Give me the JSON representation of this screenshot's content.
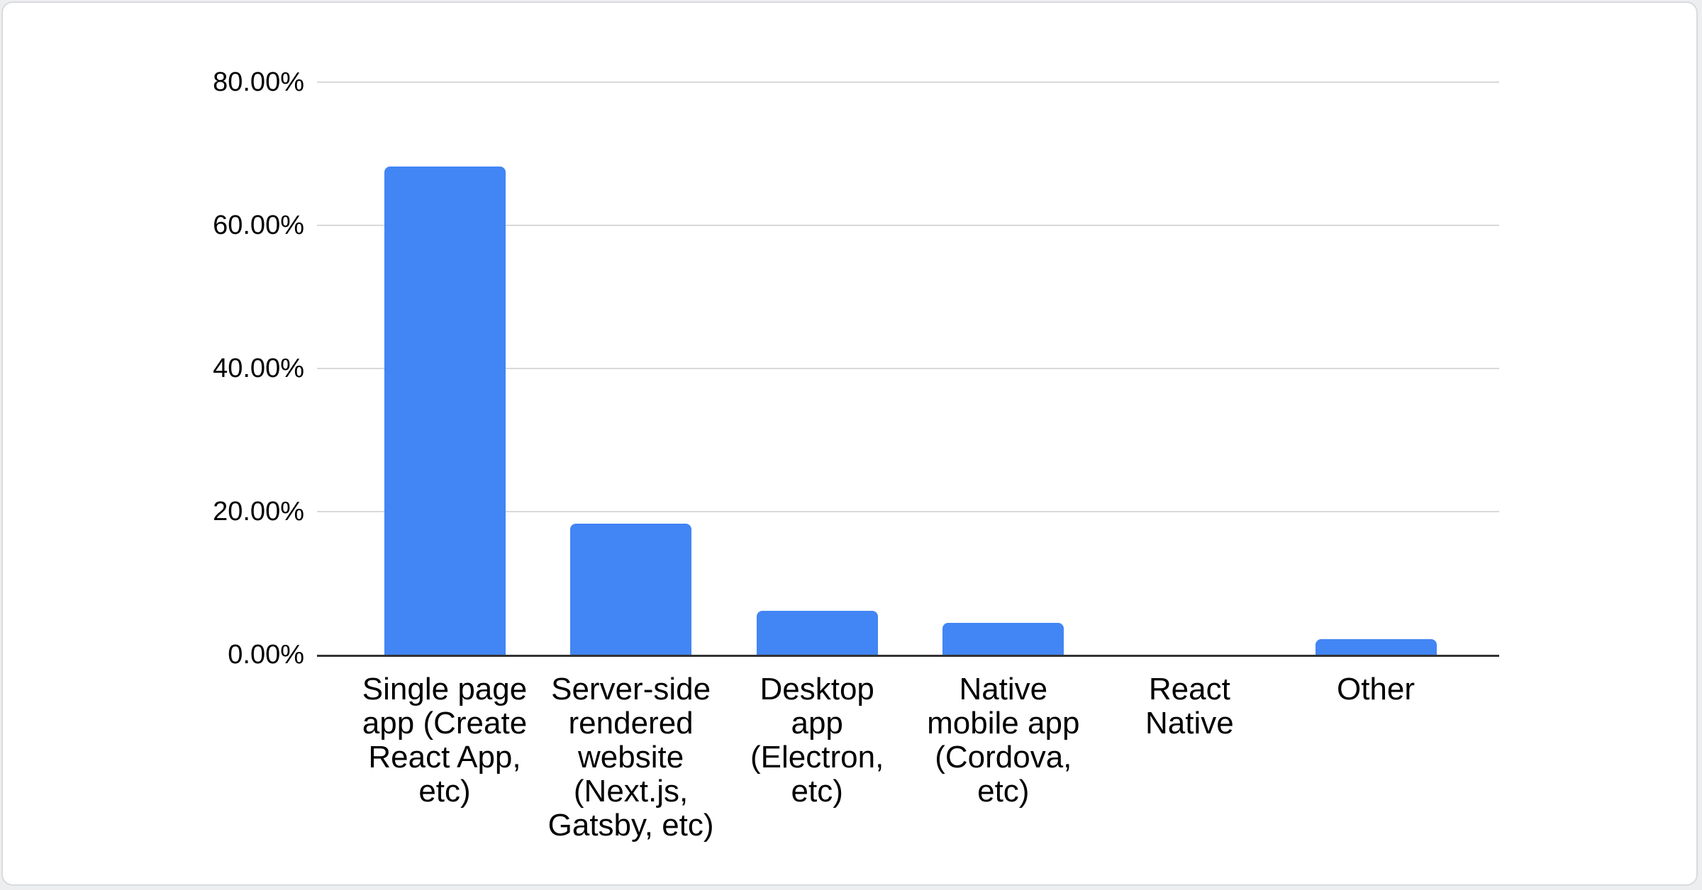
{
  "chart_data": {
    "type": "bar",
    "title": "",
    "xlabel": "",
    "ylabel": "",
    "unit": "%",
    "categories": [
      "Single page app (Create React App, etc)",
      "Server-side rendered website (Next.js, Gatsby, etc)",
      "Desktop app (Electron, etc)",
      "Native mobile app (Cordova, etc)",
      "React Native",
      "Other"
    ],
    "values": [
      68.2,
      18.3,
      6.1,
      4.5,
      0,
      2.2
    ],
    "ylim": [
      0,
      80
    ],
    "yticks": [
      {
        "value": 80,
        "label": "80.00%"
      },
      {
        "value": 60,
        "label": "60.00%"
      },
      {
        "value": 40,
        "label": "40.00%"
      },
      {
        "value": 20,
        "label": "20.00%"
      },
      {
        "value": 0,
        "label": "0.00%"
      }
    ],
    "grid": true,
    "legend": false,
    "colors": {
      "bar": "#4285f4",
      "gridline": "#d9d9d9",
      "axis": "#333333",
      "label": "#000000",
      "card_background": "#ffffff",
      "card_border": "#d9dbde"
    }
  }
}
